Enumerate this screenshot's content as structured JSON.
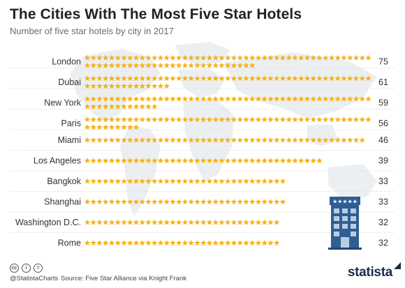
{
  "header": {
    "title": "The Cities With The Most Five Star Hotels",
    "subtitle": "Number of five star hotels by city in 2017"
  },
  "chart_data": {
    "type": "bar",
    "title": "The Cities With The Most Five Star Hotels",
    "subtitle": "Number of five star hotels by city in 2017",
    "unit_glyph": "star",
    "categories": [
      "London",
      "Dubai",
      "New York",
      "Paris",
      "Miami",
      "Los Angeles",
      "Bangkok",
      "Shanghai",
      "Washington D.C.",
      "Rome"
    ],
    "values": [
      75,
      61,
      59,
      56,
      46,
      39,
      33,
      33,
      32,
      32
    ],
    "data_labels": [
      "75",
      "61",
      "59",
      "56",
      "46",
      "39",
      "33",
      "33",
      "32",
      "32"
    ],
    "grid": false,
    "legend": "none",
    "colors": {
      "star": "#f5b31b",
      "background_map": "#eceff1",
      "text": "#333333",
      "building": "#2f5e93",
      "building_window": "#b8cde4"
    }
  },
  "footer": {
    "handle": "@StatistaCharts",
    "source": "Source: Five Star Alliance via Knight Frank",
    "brand": "statista",
    "license_icons": [
      "cc-icon",
      "by-icon",
      "nd-icon"
    ]
  }
}
